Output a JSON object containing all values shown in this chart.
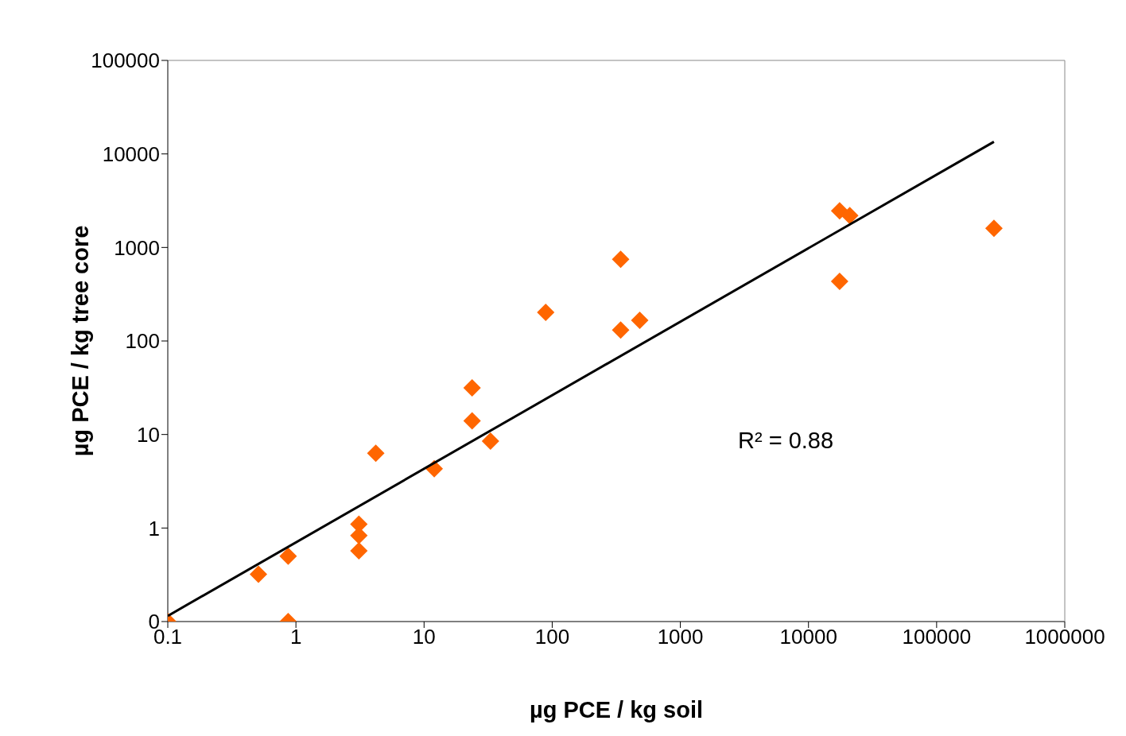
{
  "chart_data": {
    "type": "scatter",
    "xlabel": "µg PCE / kg soil",
    "ylabel": "µg PCE / kg tree core",
    "annotations": [
      "R² = 0.88"
    ],
    "log": "xy",
    "marker": "diamond",
    "xlim": [
      0.1,
      1000000
    ],
    "xticks": [
      0.1,
      1,
      10,
      100,
      1000,
      10000,
      100000,
      1000000
    ],
    "ylim": [
      0.1,
      100000
    ],
    "yticks": [
      {
        "value": 0.1,
        "label": "0"
      },
      1,
      10,
      100,
      1000,
      10000,
      100000
    ],
    "series": [
      {
        "color": "#ff6600",
        "x": [
          0.1,
          0.51,
          0.87,
          0.87,
          3.1,
          3.1,
          3.1,
          4.2,
          12,
          23.7,
          23.7,
          33,
          89,
          342,
          342,
          482,
          17500,
          21000,
          17500,
          280000
        ],
        "values": [
          0.1,
          0.32,
          0.5,
          0.1,
          1.1,
          0.83,
          0.57,
          6.3,
          4.3,
          31.5,
          14,
          8.5,
          202,
          748,
          131,
          166,
          2470,
          2190,
          433,
          1600
        ]
      },
      {
        "type": "line",
        "marker": "none",
        "color": "#000000",
        "x": [
          0.1,
          280000
        ],
        "values": [
          0.115,
          13500
        ]
      }
    ]
  }
}
